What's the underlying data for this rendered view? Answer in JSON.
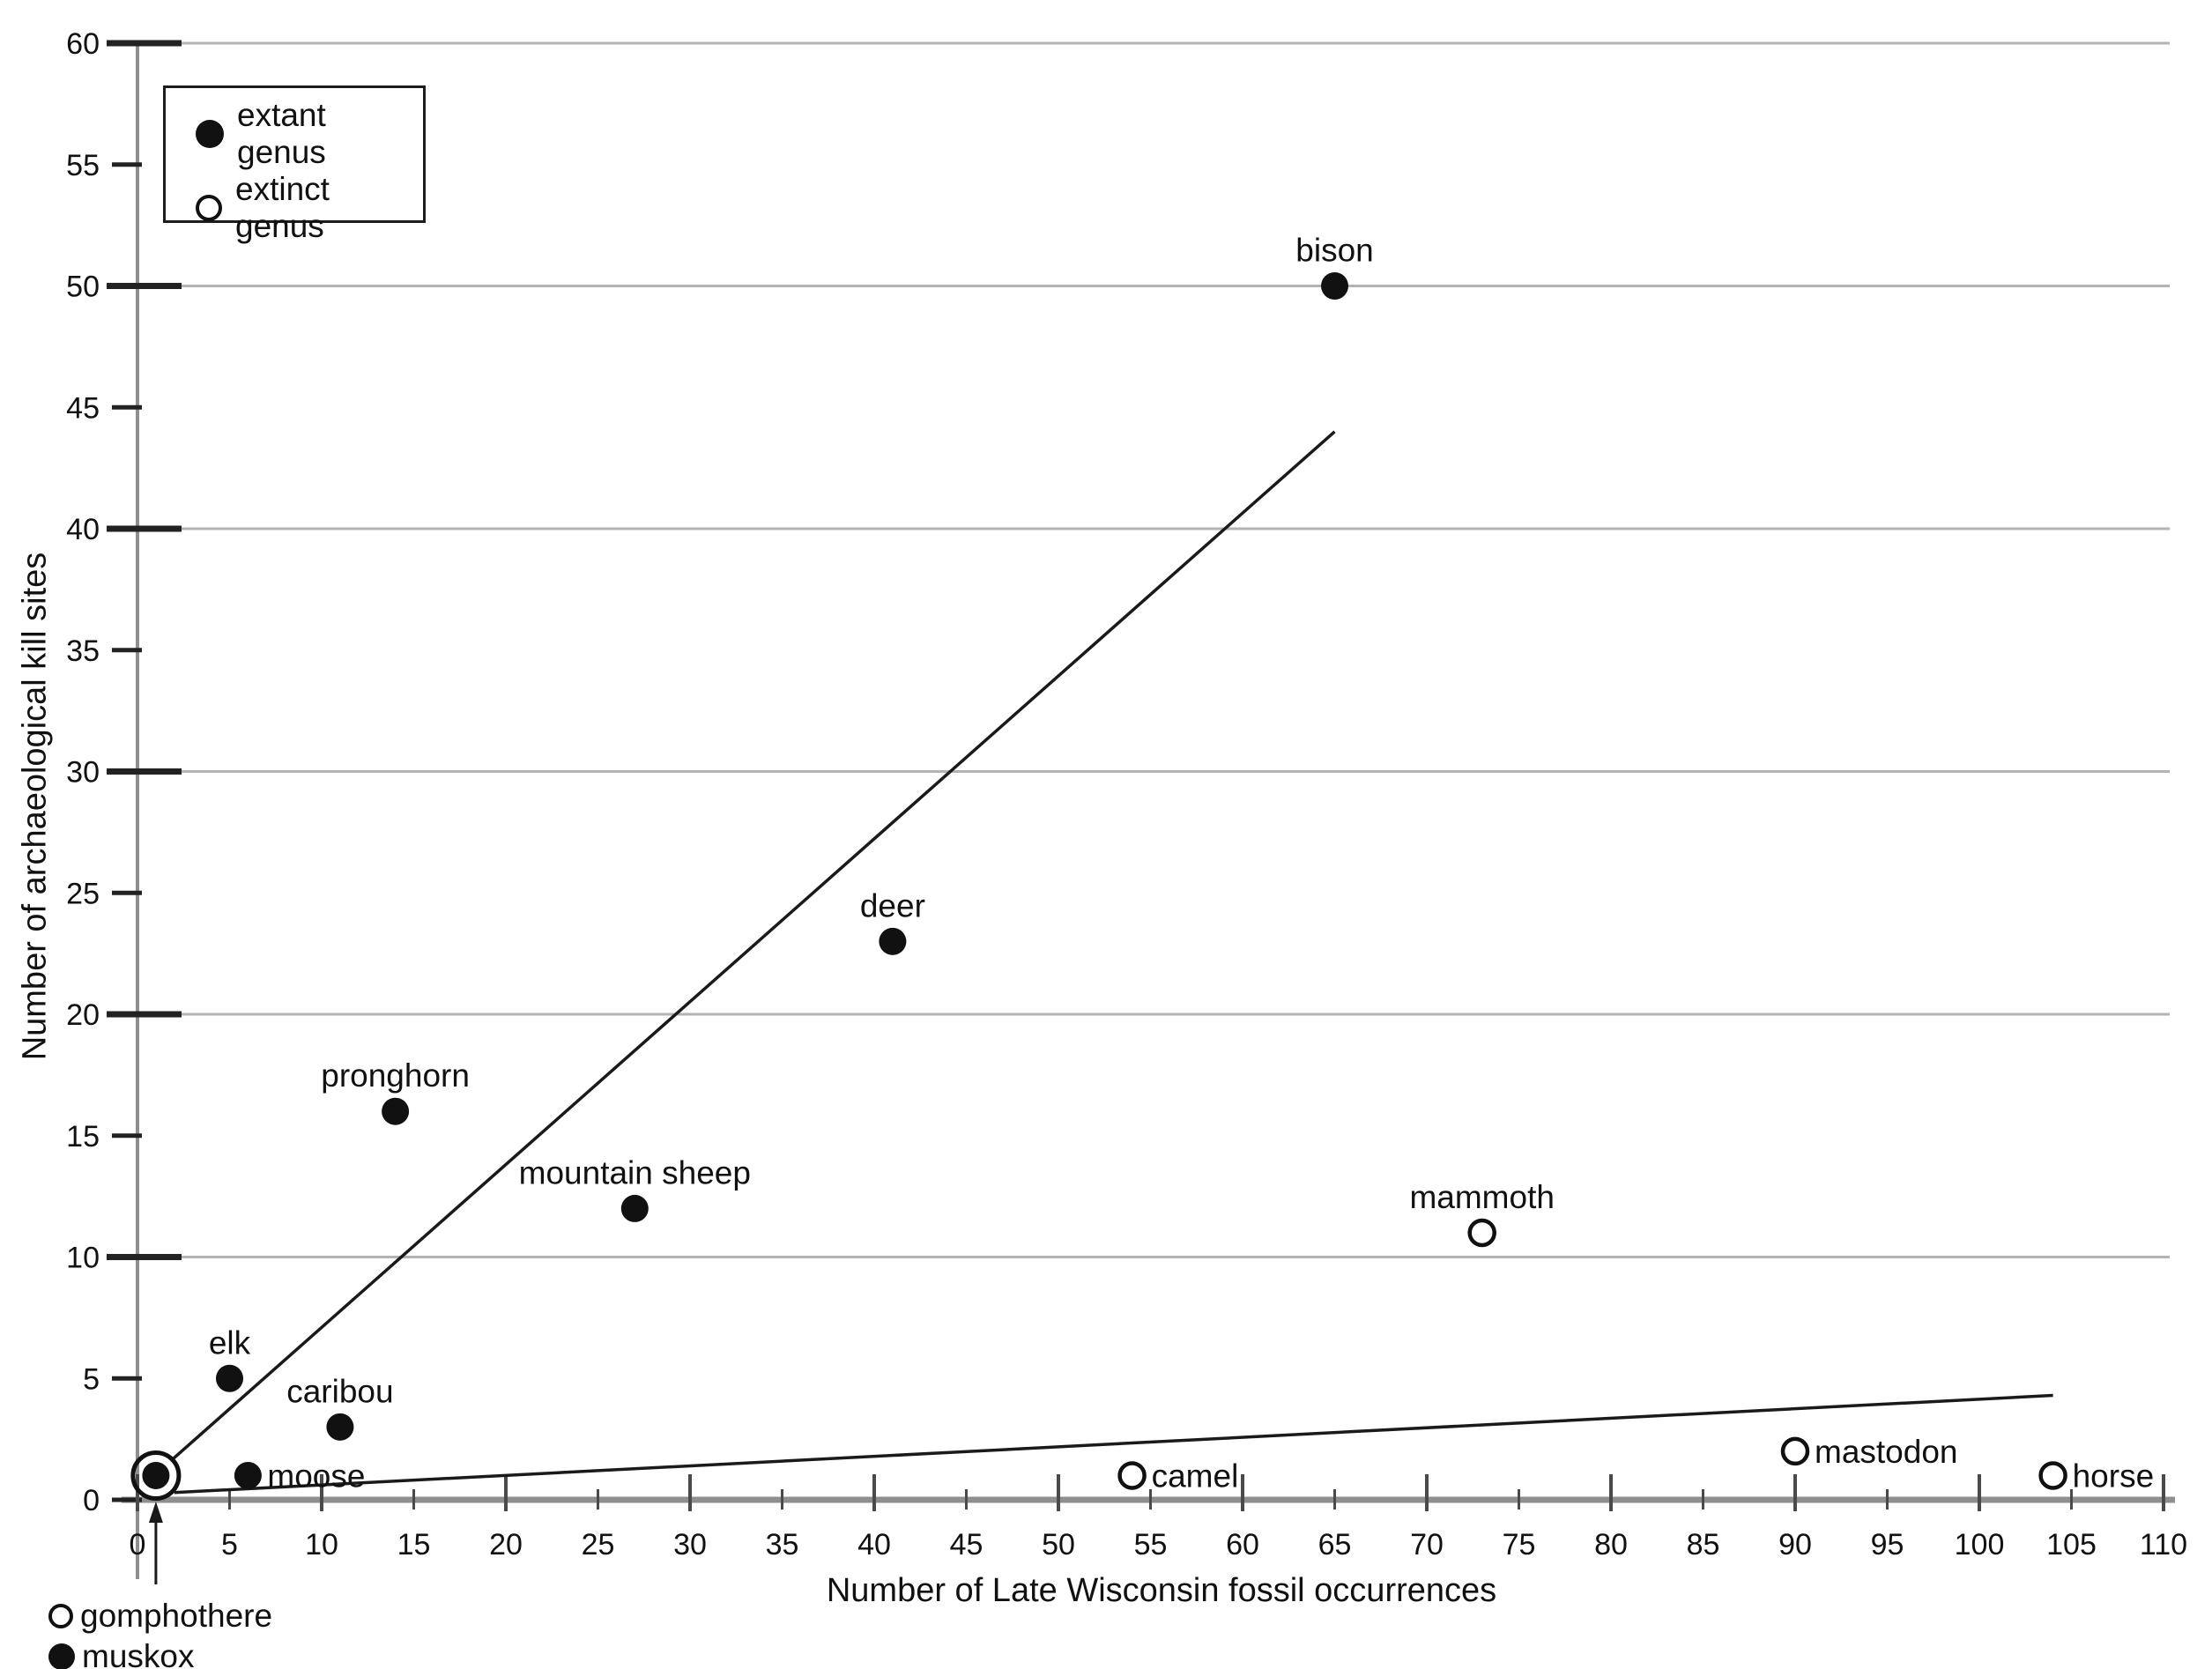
{
  "chart_data": {
    "type": "scatter",
    "title": "",
    "xlabel": "Number of Late Wisconsin fossil occurrences",
    "ylabel": "Number of archaeological kill sites",
    "xlim": [
      0,
      110
    ],
    "ylim": [
      0,
      60
    ],
    "x_tick_step": 5,
    "y_tick_step": 5,
    "grid": "horizontal gridlines at y = 10,20,30,40,50,60",
    "legend_position": "top-left inside plot",
    "legend": [
      {
        "label": "extant genus",
        "marker": "filled"
      },
      {
        "label": "extinct genus",
        "marker": "open"
      }
    ],
    "series": [
      {
        "name": "extant genus",
        "marker": "filled",
        "points": [
          {
            "label": "muskox",
            "x": 1,
            "y": 1,
            "label_pos": "none"
          },
          {
            "label": "elk",
            "x": 5,
            "y": 5,
            "label_pos": "above"
          },
          {
            "label": "moose",
            "x": 6,
            "y": 1,
            "label_pos": "right"
          },
          {
            "label": "caribou",
            "x": 11,
            "y": 3,
            "label_pos": "above"
          },
          {
            "label": "pronghorn",
            "x": 14,
            "y": 16,
            "label_pos": "above"
          },
          {
            "label": "mountain sheep",
            "x": 27,
            "y": 12,
            "label_pos": "above"
          },
          {
            "label": "deer",
            "x": 41,
            "y": 23,
            "label_pos": "above"
          },
          {
            "label": "bison",
            "x": 65,
            "y": 50,
            "label_pos": "above"
          }
        ]
      },
      {
        "name": "extinct genus",
        "marker": "open",
        "points": [
          {
            "label": "gomphothere",
            "x": 1,
            "y": 1,
            "label_pos": "none",
            "ring": true
          },
          {
            "label": "camel",
            "x": 54,
            "y": 1,
            "label_pos": "right"
          },
          {
            "label": "mammoth",
            "x": 73,
            "y": 11,
            "label_pos": "above"
          },
          {
            "label": "mastodon",
            "x": 90,
            "y": 2,
            "label_pos": "right"
          },
          {
            "label": "horse",
            "x": 104,
            "y": 1,
            "label_pos": "right"
          }
        ]
      }
    ],
    "trend_lines": [
      {
        "name": "extant-trend",
        "x1": 1.8,
        "y1": 1.6,
        "x2": 65,
        "y2": 44
      },
      {
        "name": "extinct-trend",
        "x1": 2,
        "y1": 0.3,
        "x2": 104,
        "y2": 4.3
      }
    ],
    "annotations": {
      "below_axis_labels": [
        {
          "label": "gomphothere",
          "marker": "open"
        },
        {
          "label": "muskox",
          "marker": "filled"
        }
      ],
      "arrow_points_to": {
        "x": 1,
        "y": 1
      }
    },
    "colors": {
      "point": "#111111",
      "text": "#111111",
      "gridline": "#b3b3b3",
      "axis": "#8f8f8f",
      "tick": "#222222",
      "background": "#ffffff"
    }
  }
}
